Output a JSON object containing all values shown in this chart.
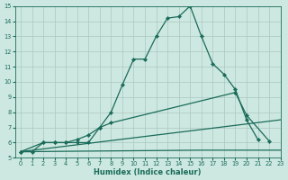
{
  "xlabel": "Humidex (Indice chaleur)",
  "xlim": [
    -0.5,
    23
  ],
  "ylim": [
    5,
    15
  ],
  "xticks": [
    0,
    1,
    2,
    3,
    4,
    5,
    6,
    7,
    8,
    9,
    10,
    11,
    12,
    13,
    14,
    15,
    16,
    17,
    18,
    19,
    20,
    21,
    22,
    23
  ],
  "yticks": [
    5,
    6,
    7,
    8,
    9,
    10,
    11,
    12,
    13,
    14,
    15
  ],
  "bg_color": "#cde8e0",
  "line_color": "#1a6b5a",
  "grid_color": "#aac8c0",
  "line1_x": [
    0,
    1,
    2,
    3,
    4,
    5,
    6,
    7,
    8,
    9,
    10,
    11,
    12,
    13,
    14,
    15,
    16,
    17,
    18,
    19,
    20,
    21
  ],
  "line1_y": [
    5.4,
    5.4,
    6.0,
    6.0,
    6.0,
    6.0,
    6.0,
    7.0,
    8.0,
    9.8,
    11.5,
    11.5,
    13.0,
    14.2,
    14.3,
    15.0,
    13.0,
    11.2,
    10.5,
    9.5,
    7.5,
    6.2
  ],
  "line2_x": [
    0,
    2,
    3,
    4,
    5,
    6,
    7,
    8,
    19,
    20,
    22
  ],
  "line2_y": [
    5.4,
    6.0,
    6.0,
    6.0,
    6.2,
    6.5,
    7.0,
    7.3,
    9.3,
    7.8,
    6.1
  ],
  "line3_x": [
    0,
    23
  ],
  "line3_y": [
    5.4,
    7.5
  ],
  "line4_x": [
    0,
    16,
    17,
    18,
    19,
    20,
    21,
    22,
    23
  ],
  "line4_y": [
    5.4,
    5.5,
    5.5,
    5.5,
    5.5,
    5.5,
    5.5,
    5.5,
    5.5
  ]
}
